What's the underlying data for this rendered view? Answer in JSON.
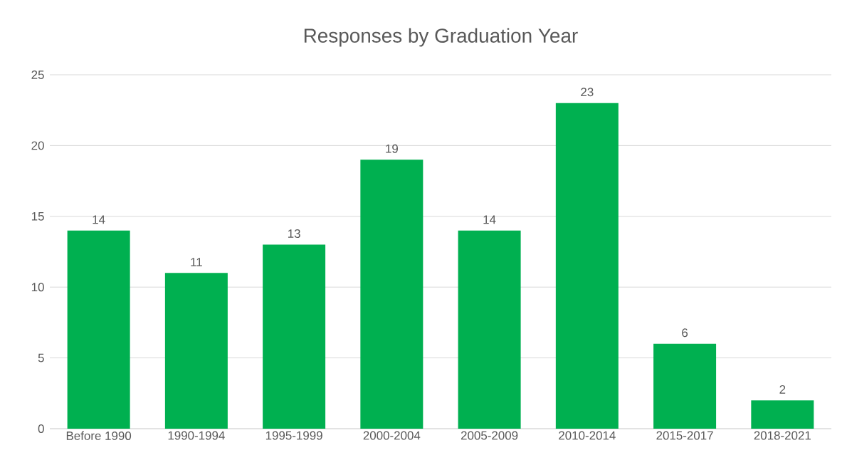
{
  "chart_data": {
    "type": "bar",
    "title": "Responses by Graduation Year",
    "categories": [
      "Before 1990",
      "1990-1994",
      "1995-1999",
      "2000-2004",
      "2005-2009",
      "2010-2014",
      "2015-2017",
      "2018-2021"
    ],
    "values": [
      14,
      11,
      13,
      19,
      14,
      23,
      6,
      2
    ],
    "color": "#00b050",
    "ylim": [
      0,
      25
    ],
    "yticks": [
      0,
      5,
      10,
      15,
      20,
      25
    ],
    "grid": "y",
    "data_labels": true
  }
}
